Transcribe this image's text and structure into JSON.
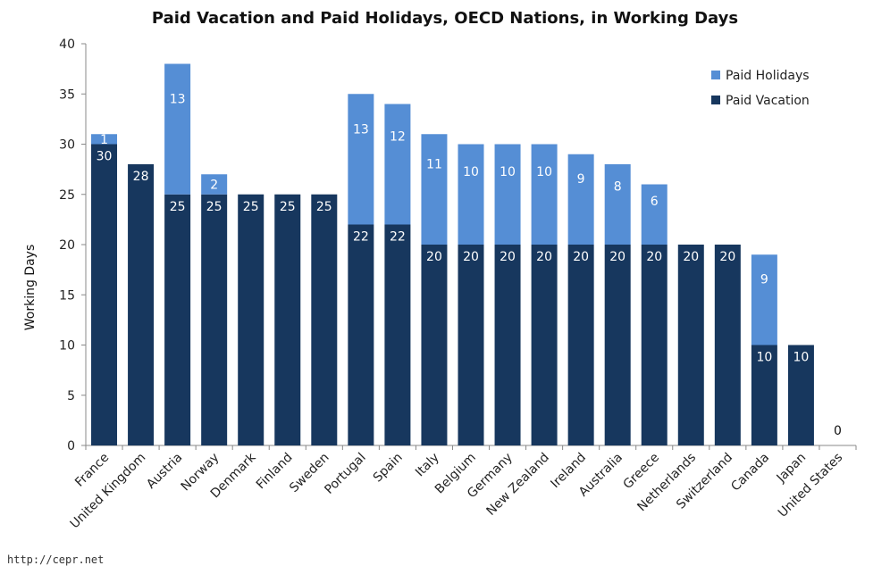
{
  "chart_data": {
    "type": "bar",
    "stacked": true,
    "title": "Paid Vacation and Paid Holidays, OECD Nations, in Working Days",
    "ylabel": "Working Days",
    "xlabel": "",
    "ylim": [
      0,
      40
    ],
    "yticks": [
      "0",
      "5",
      "10",
      "15",
      "20",
      "25",
      "30",
      "35",
      "40"
    ],
    "grid": false,
    "legend_position": "top-right",
    "categories": [
      "France",
      "United Kingdom",
      "Austria",
      "Norway",
      "Denmark",
      "Finland",
      "Sweden",
      "Portugal",
      "Spain",
      "Italy",
      "Belgium",
      "Germany",
      "New Zealand",
      "Ireland",
      "Australia",
      "Greece",
      "Netherlands",
      "Switzerland",
      "Canada",
      "Japan",
      "United States"
    ],
    "series": [
      {
        "name": "Paid Vacation",
        "color": "#17375e",
        "values": [
          30,
          28,
          25,
          25,
          25,
          25,
          25,
          22,
          22,
          20,
          20,
          20,
          20,
          20,
          20,
          20,
          20,
          20,
          10,
          10,
          0
        ]
      },
      {
        "name": "Paid Holidays",
        "color": "#558ed5",
        "values": [
          1,
          0,
          13,
          2,
          0,
          0,
          0,
          13,
          12,
          11,
          10,
          10,
          10,
          9,
          8,
          6,
          0,
          0,
          9,
          0,
          0
        ]
      }
    ],
    "legend_order": [
      "Paid Holidays",
      "Paid Vacation"
    ]
  },
  "source": "http://cepr.net"
}
